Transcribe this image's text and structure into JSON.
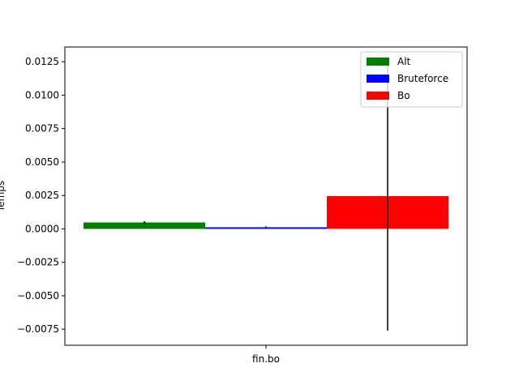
{
  "chart_data": {
    "type": "bar",
    "categories": [
      "fin.bo"
    ],
    "series": [
      {
        "name": "Alt",
        "values": [
          0.00048
        ],
        "error": [
          0.0001
        ],
        "color": "#008000"
      },
      {
        "name": "Bruteforce",
        "values": [
          0.00012
        ],
        "error": [
          7e-05
        ],
        "color": "#0000ff"
      },
      {
        "name": "Bo",
        "values": [
          0.00245
        ],
        "error": [
          0.01005
        ],
        "color": "#ff0000"
      }
    ],
    "ylabel": "Temps",
    "ylim": [
      -0.0087,
      0.0136
    ],
    "yticks": [
      -0.0075,
      -0.005,
      -0.0025,
      0.0,
      0.0025,
      0.005,
      0.0075,
      0.01,
      0.0125
    ],
    "ytick_labels": [
      "−0.0075",
      "−0.0050",
      "−0.0025",
      "0.0000",
      "0.0025",
      "0.0050",
      "0.0075",
      "0.0100",
      "0.0125"
    ],
    "legend_position": "upper right",
    "grid": false
  }
}
